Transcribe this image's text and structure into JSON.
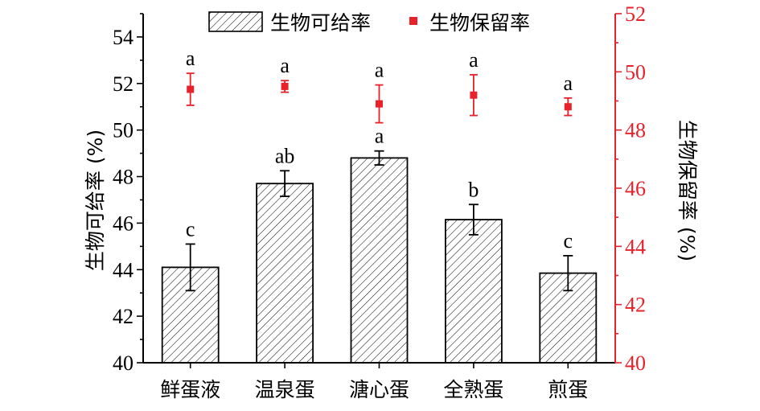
{
  "chart_data": {
    "type": "bar",
    "categories": [
      "鲜蛋液",
      "温泉蛋",
      "溏心蛋",
      "全熟蛋",
      "煎蛋"
    ],
    "series": [
      {
        "name": "生物可给率",
        "axis": "left",
        "kind": "bar",
        "values": [
          44.1,
          47.7,
          48.8,
          46.15,
          43.85
        ],
        "errors": [
          1.0,
          0.55,
          0.3,
          0.65,
          0.75
        ],
        "labels": [
          "c",
          "ab",
          "a",
          "b",
          "c"
        ]
      },
      {
        "name": "生物保留率",
        "axis": "right",
        "kind": "point",
        "color": "#e8212a",
        "values": [
          49.4,
          49.5,
          48.9,
          49.2,
          48.8
        ],
        "errors": [
          0.55,
          0.2,
          0.65,
          0.7,
          0.3
        ],
        "labels": [
          "a",
          "a",
          "a",
          "a",
          "a"
        ]
      }
    ],
    "ylabel": "生物可给率 (%)",
    "y2label": "生物保留率 (%)",
    "ylim": [
      40,
      55
    ],
    "y2lim": [
      40,
      52
    ],
    "yticks": [
      40,
      42,
      44,
      46,
      48,
      50,
      52,
      54
    ],
    "y2ticks": [
      40,
      42,
      44,
      46,
      48,
      50,
      52
    ],
    "legend_position": "top",
    "grid": false,
    "colors": {
      "axis_left": "#000000",
      "axis_right": "#e8212a",
      "marker": "#e8212a"
    }
  }
}
